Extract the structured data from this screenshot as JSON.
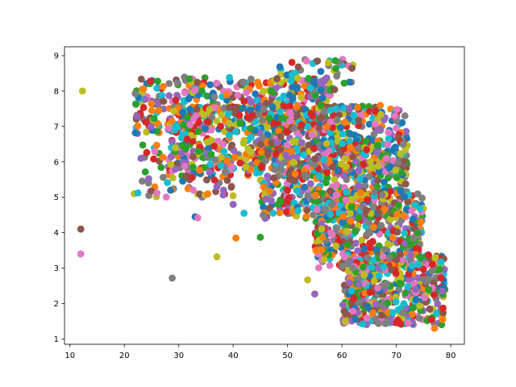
{
  "chart_data": {
    "type": "scatter",
    "title": "",
    "xlabel": "",
    "ylabel": "",
    "xlim": [
      9,
      82.5
    ],
    "ylim": [
      0.85,
      9.25
    ],
    "x_ticks": [
      10,
      20,
      30,
      40,
      50,
      60,
      70,
      80
    ],
    "y_ticks": [
      1,
      2,
      3,
      4,
      5,
      6,
      7,
      8,
      9
    ],
    "grid": false,
    "legend": "none",
    "palette": [
      "#1f77b4",
      "#ff7f0e",
      "#2ca02c",
      "#d62728",
      "#9467bd",
      "#8c564b",
      "#e377c2",
      "#7f7f7f",
      "#bcbd22",
      "#17becf"
    ],
    "clusters": [
      {
        "x_range": [
          22,
          58
        ],
        "y_range": [
          6.8,
          8.4
        ],
        "count": 420
      },
      {
        "x_range": [
          28,
          72
        ],
        "y_range": [
          5.6,
          7.6
        ],
        "count": 700
      },
      {
        "x_range": [
          45,
          72
        ],
        "y_range": [
          4.4,
          6.6
        ],
        "count": 500
      },
      {
        "x_range": [
          55,
          75
        ],
        "y_range": [
          3.0,
          5.2
        ],
        "count": 420
      },
      {
        "x_range": [
          60,
          79
        ],
        "y_range": [
          1.4,
          3.4
        ],
        "count": 520
      },
      {
        "x_range": [
          48,
          62
        ],
        "y_range": [
          8.0,
          8.9
        ],
        "count": 60
      },
      {
        "x_range": [
          23,
          40
        ],
        "y_range": [
          5.0,
          6.5
        ],
        "count": 90
      }
    ],
    "points": [
      {
        "x": 12.3,
        "y": 8.0,
        "color": "#bcbd22"
      },
      {
        "x": 22.0,
        "y": 7.93,
        "color": "#7f7f7f"
      },
      {
        "x": 12.0,
        "y": 4.1,
        "color": "#8c564b"
      },
      {
        "x": 12.0,
        "y": 3.4,
        "color": "#e377c2"
      },
      {
        "x": 28.8,
        "y": 2.72,
        "color": "#7f7f7f"
      },
      {
        "x": 37.0,
        "y": 3.32,
        "color": "#bcbd22"
      },
      {
        "x": 40.5,
        "y": 3.85,
        "color": "#ff7f0e"
      },
      {
        "x": 45.0,
        "y": 3.87,
        "color": "#2ca02c"
      },
      {
        "x": 53.7,
        "y": 2.67,
        "color": "#bcbd22"
      },
      {
        "x": 55.0,
        "y": 2.27,
        "color": "#9467bd"
      },
      {
        "x": 21.8,
        "y": 5.1,
        "color": "#bcbd22"
      },
      {
        "x": 22.5,
        "y": 5.12,
        "color": "#17becf"
      },
      {
        "x": 24.5,
        "y": 5.05,
        "color": "#7f7f7f"
      },
      {
        "x": 25.0,
        "y": 5.18,
        "color": "#8c564b"
      },
      {
        "x": 26.0,
        "y": 5.12,
        "color": "#e377c2"
      },
      {
        "x": 28.5,
        "y": 5.2,
        "color": "#1f77b4"
      },
      {
        "x": 25.5,
        "y": 7.22,
        "color": "#2ca02c"
      },
      {
        "x": 26.3,
        "y": 7.45,
        "color": "#ff7f0e"
      },
      {
        "x": 33.0,
        "y": 4.45,
        "color": "#1f77b4"
      },
      {
        "x": 33.5,
        "y": 4.42,
        "color": "#e377c2"
      },
      {
        "x": 37.0,
        "y": 5.3,
        "color": "#9467bd"
      },
      {
        "x": 40.0,
        "y": 4.8,
        "color": "#9467bd"
      },
      {
        "x": 42.0,
        "y": 4.55,
        "color": "#17becf"
      },
      {
        "x": 53.5,
        "y": 8.85,
        "color": "#e377c2"
      },
      {
        "x": 55.5,
        "y": 8.85,
        "color": "#8c564b"
      },
      {
        "x": 57.5,
        "y": 8.8,
        "color": "#bcbd22"
      },
      {
        "x": 78.5,
        "y": 1.55,
        "color": "#ff7f0e"
      },
      {
        "x": 77.0,
        "y": 1.3,
        "color": "#ff7f0e"
      }
    ]
  }
}
